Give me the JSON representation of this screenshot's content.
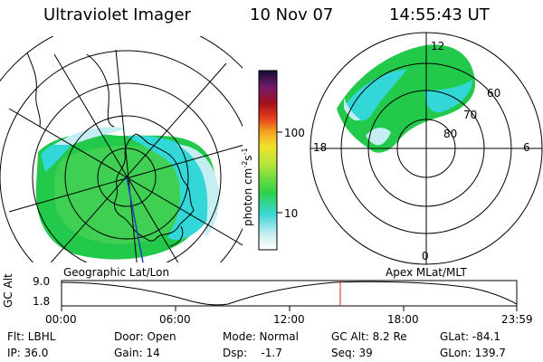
{
  "header": {
    "instrument": "Ultraviolet Imager",
    "date": "10 Nov 07",
    "time": "14:55:43 UT"
  },
  "colorbar": {
    "unit_label": "photon cm",
    "unit_sup1": "-2",
    "unit_mid": "s",
    "unit_sup2": "-1",
    "ticks": [
      "100",
      "10"
    ]
  },
  "left_panel": {
    "label": "Geographic Lat/Lon"
  },
  "right_panel": {
    "label": "Apex MLat/MLT",
    "mlt_labels": [
      "12",
      "18",
      "6",
      "0"
    ],
    "mlat_labels": [
      "60",
      "70",
      "80"
    ]
  },
  "timeline": {
    "ylabel": "GC Alt",
    "y_top": "9.0",
    "y_bottom": "1.8",
    "x_ticks": [
      "00:00",
      "06:00",
      "12:00",
      "18:00",
      "23:59"
    ],
    "marker_color": "#e02020"
  },
  "footer": {
    "row1": [
      {
        "label": "Flt: LBHL"
      },
      {
        "label": "Door: Open"
      },
      {
        "label": "Mode: Normal"
      },
      {
        "label": "GC Alt: 8.2 Re"
      },
      {
        "label": "GLat: -84.1"
      }
    ],
    "row2": [
      {
        "label": "IP: 36.0"
      },
      {
        "label": "Gain: 14"
      },
      {
        "label": "Dsp:    -1.7"
      },
      {
        "label": "Seq: 39"
      },
      {
        "label": "GLon: 139.7"
      }
    ]
  },
  "colors": {
    "aurora_green": "#22c94a",
    "aurora_cyan": "#33d7d7",
    "aurora_light": "#c4eef2"
  }
}
